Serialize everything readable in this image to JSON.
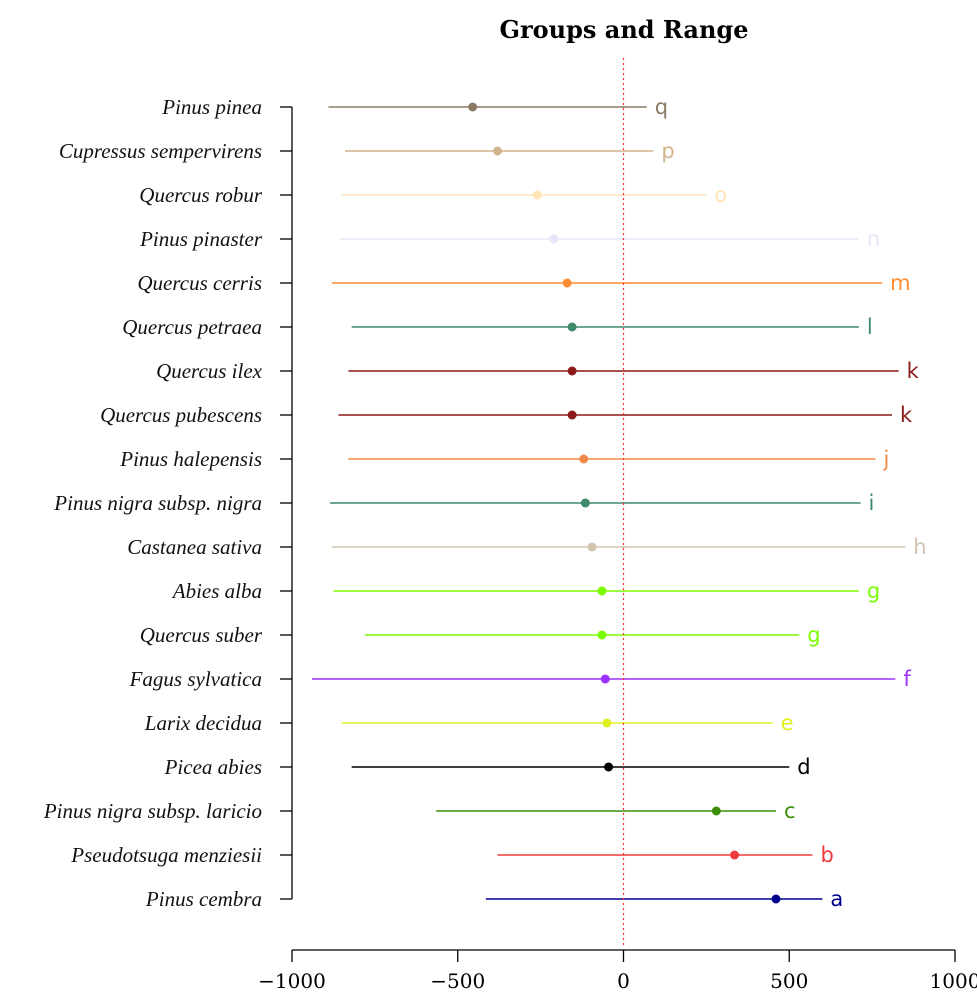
{
  "chart_data": {
    "type": "dot-range",
    "title": "Groups and Range",
    "xlim": [
      -1000,
      1000
    ],
    "xticks": [
      -1000,
      -500,
      0,
      500,
      1000
    ],
    "xtick_labels": [
      "−1000",
      "−500",
      "0",
      "500",
      "1000"
    ],
    "reference_line": 0,
    "reference_color": "#ff3030",
    "grid": false,
    "series": [
      {
        "name": "Pinus pinea",
        "point": -455,
        "low": -890,
        "high": 70,
        "group": "q",
        "color": "#8b7b66"
      },
      {
        "name": "Cupressus sempervirens",
        "point": -380,
        "low": -840,
        "high": 90,
        "group": "p",
        "color": "#d2b48c"
      },
      {
        "name": "Quercus robur",
        "point": -260,
        "low": -850,
        "high": 250,
        "group": "o",
        "color": "#ffe4b5"
      },
      {
        "name": "Pinus pinaster",
        "point": -210,
        "low": -855,
        "high": 710,
        "group": "n",
        "color": "#e6e6fa"
      },
      {
        "name": "Quercus cerris",
        "point": -170,
        "low": -880,
        "high": 780,
        "group": "m",
        "color": "#ff8c30"
      },
      {
        "name": "Quercus petraea",
        "point": -155,
        "low": -820,
        "high": 710,
        "group": "l",
        "color": "#3f8a6a"
      },
      {
        "name": "Quercus ilex",
        "point": -155,
        "low": -830,
        "high": 830,
        "group": "k",
        "color": "#8b1a1a"
      },
      {
        "name": "Quercus pubescens",
        "point": -155,
        "low": -860,
        "high": 810,
        "group": "k",
        "color": "#8b1a1a"
      },
      {
        "name": "Pinus halepensis",
        "point": -120,
        "low": -830,
        "high": 760,
        "group": "j",
        "color": "#f08a4a"
      },
      {
        "name": "Pinus nigra subsp. nigra",
        "point": -115,
        "low": -885,
        "high": 715,
        "group": "i",
        "color": "#3f8a6a"
      },
      {
        "name": "Castanea sativa",
        "point": -95,
        "low": -880,
        "high": 850,
        "group": "h",
        "color": "#d2c4b0"
      },
      {
        "name": "Abies alba",
        "point": -65,
        "low": -875,
        "high": 710,
        "group": "g",
        "color": "#7cfc00"
      },
      {
        "name": "Quercus suber",
        "point": -65,
        "low": -780,
        "high": 530,
        "group": "g",
        "color": "#7cfc00"
      },
      {
        "name": "Fagus sylvatica",
        "point": -55,
        "low": -940,
        "high": 820,
        "group": "f",
        "color": "#9b30ff"
      },
      {
        "name": "Larix decidua",
        "point": -50,
        "low": -850,
        "high": 450,
        "group": "e",
        "color": "#e0f020"
      },
      {
        "name": "Picea abies",
        "point": -45,
        "low": -820,
        "high": 500,
        "group": "d",
        "color": "#000000"
      },
      {
        "name": "Pinus nigra subsp. laricio",
        "point": 280,
        "low": -565,
        "high": 460,
        "group": "c",
        "color": "#3c8f0a"
      },
      {
        "name": "Pseudotsuga menziesii",
        "point": 335,
        "low": -380,
        "high": 570,
        "group": "b",
        "color": "#ee3b3b"
      },
      {
        "name": "Pinus cembra",
        "point": 460,
        "low": -415,
        "high": 600,
        "group": "a",
        "color": "#00008b"
      }
    ]
  }
}
